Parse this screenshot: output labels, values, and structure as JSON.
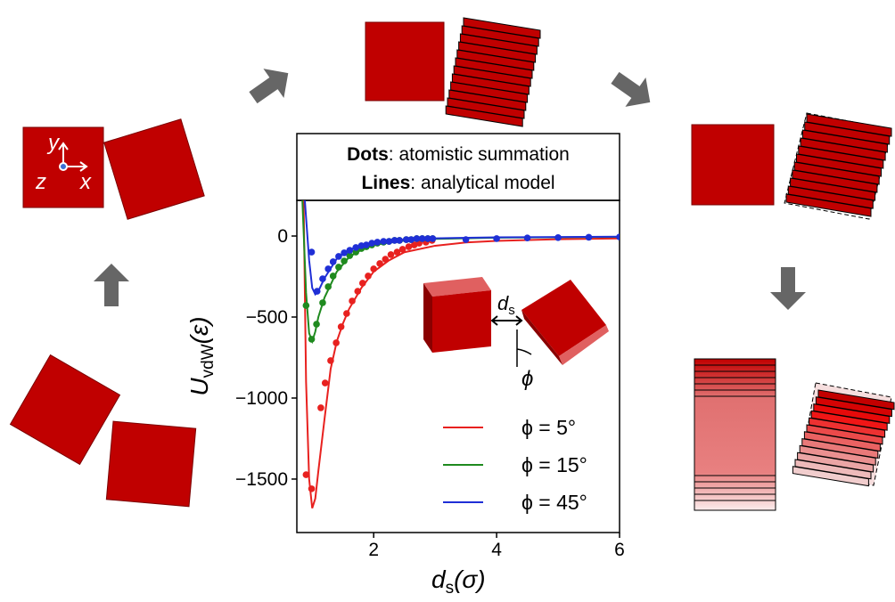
{
  "chart_data": {
    "type": "line",
    "annotation": [
      {
        "bold": "Dots",
        "text": ": atomistic summation"
      },
      {
        "bold": "Lines",
        "text": ": analytical model"
      }
    ],
    "xlabel": {
      "main": "d",
      "sub": "s",
      "rest": "(σ)"
    },
    "ylabel": {
      "main": "U",
      "sub": "vdW",
      "rest": "(ε)"
    },
    "xlim": [
      0.75,
      6
    ],
    "ylim": [
      -1830,
      220
    ],
    "xticks": [
      2,
      4,
      6
    ],
    "yticks": [
      0,
      -500,
      -1000,
      -1500
    ],
    "legend": "lower right",
    "series": [
      {
        "name": "ϕ = 5°",
        "color": "#e8211f",
        "x": [
          0.86,
          0.9,
          0.95,
          1.0,
          1.05,
          1.1,
          1.2,
          1.3,
          1.4,
          1.5,
          1.6,
          1.8,
          2.0,
          2.25,
          2.5,
          3,
          3.5,
          4,
          5,
          6
        ],
        "values": [
          220,
          -900,
          -1500,
          -1680,
          -1620,
          -1450,
          -1130,
          -820,
          -650,
          -540,
          -450,
          -320,
          -220,
          -150,
          -100,
          -60,
          -40,
          -30,
          -20,
          -15
        ],
        "dots": {
          "x": [
            0.9,
            0.99,
            1.14,
            1.21,
            1.3,
            1.39,
            1.47,
            1.56,
            1.65,
            1.74,
            1.82,
            1.91,
            2.0,
            2.1,
            2.19,
            2.28,
            2.38,
            2.47,
            2.57,
            2.66,
            2.74,
            2.85,
            2.95
          ],
          "values": [
            -1473,
            -1560,
            -1060,
            -907,
            -769,
            -659,
            -560,
            -478,
            -401,
            -341,
            -291,
            -247,
            -203,
            -170,
            -143,
            -115,
            -99,
            -82,
            -66,
            -55,
            -44,
            -38,
            -27
          ]
        }
      },
      {
        "name": "ϕ = 15°",
        "color": "#1f8a1f",
        "x": [
          0.84,
          0.9,
          0.95,
          1.0,
          1.05,
          1.1,
          1.2,
          1.4,
          1.6,
          1.8,
          2.0,
          2.5,
          3,
          4,
          6
        ],
        "values": [
          220,
          -350,
          -600,
          -650,
          -590,
          -500,
          -380,
          -220,
          -130,
          -85,
          -55,
          -28,
          -18,
          -10,
          -5
        ],
        "dots": {
          "x": [
            0.9,
            0.99,
            1.07,
            1.17,
            1.26,
            1.34,
            1.43,
            1.52,
            1.61,
            1.71,
            1.8,
            1.88,
            1.97,
            2.06,
            2.16,
            2.25,
            2.34,
            2.42,
            2.53,
            2.61,
            2.7,
            2.79,
            2.88,
            2.96
          ],
          "values": [
            -429,
            -637,
            -544,
            -412,
            -313,
            -247,
            -192,
            -154,
            -121,
            -99,
            -77,
            -66,
            -55,
            -44,
            -38,
            -33,
            -27,
            -27,
            -22,
            -22,
            -16,
            -16,
            -16,
            -16
          ]
        }
      },
      {
        "name": "ϕ = 45°",
        "color": "#1f2fd6",
        "x": [
          0.88,
          0.95,
          1.0,
          1.05,
          1.1,
          1.2,
          1.4,
          1.6,
          1.8,
          2.0,
          2.5,
          3,
          4,
          6
        ],
        "values": [
          220,
          -150,
          -320,
          -360,
          -340,
          -260,
          -140,
          -85,
          -58,
          -40,
          -22,
          -14,
          -8,
          -4
        ],
        "dots": {
          "x": [
            0.99,
            1.08,
            1.17,
            1.26,
            1.34,
            1.43,
            1.52,
            1.61,
            1.71,
            1.8,
            1.88,
            1.97,
            2.06,
            2.16,
            2.25,
            2.34,
            2.42,
            2.53,
            2.61,
            2.7,
            2.79,
            2.88,
            2.96,
            3.5,
            4,
            4.5,
            5,
            5.5,
            6
          ],
          "values": [
            -99,
            -341,
            -264,
            -203,
            -159,
            -126,
            -104,
            -88,
            -71,
            -60,
            -55,
            -44,
            -38,
            -33,
            -33,
            -27,
            -27,
            -22,
            -22,
            -16,
            -16,
            -16,
            -16,
            -22,
            -16,
            -12,
            -10,
            -8,
            -6
          ]
        }
      }
    ],
    "inset_labels": {
      "gap": "d",
      "gap_sub": "s",
      "angle": "ϕ"
    }
  },
  "diagram_labels": {
    "y": "y",
    "z": "z",
    "x": "x"
  }
}
